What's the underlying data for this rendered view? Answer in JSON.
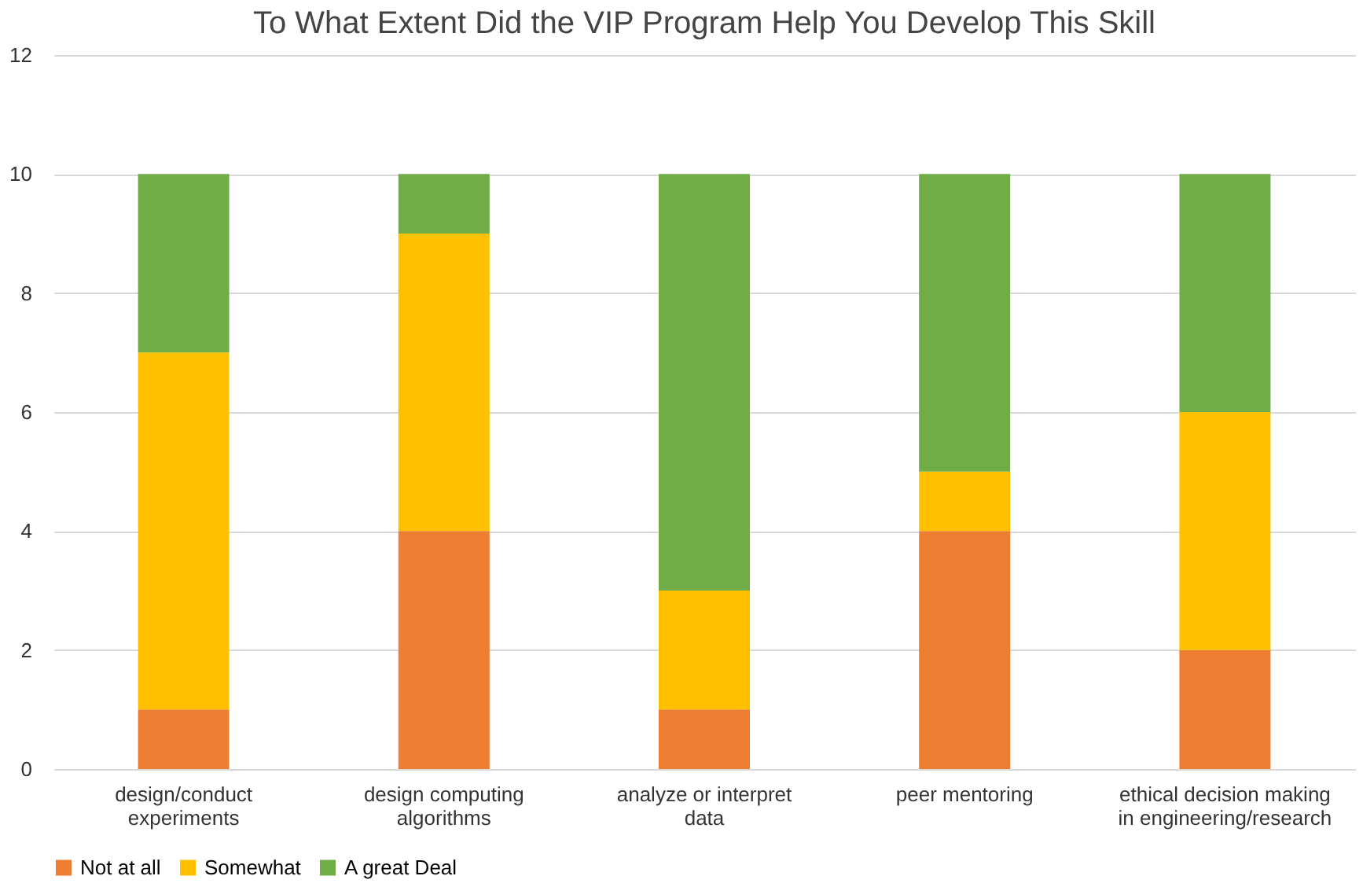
{
  "chart_data": {
    "type": "bar",
    "title": "To What Extent Did the VIP Program Help You Develop This Skill",
    "categories": [
      "design/conduct experiments",
      "design computing algorithms",
      "analyze or interpret data",
      "peer mentoring",
      "ethical decision making in engineering/research"
    ],
    "series": [
      {
        "name": "Not at all",
        "color": "#ed7d31",
        "values": [
          1,
          4,
          1,
          4,
          2
        ]
      },
      {
        "name": "Somewhat",
        "color": "#ffc000",
        "values": [
          6,
          5,
          2,
          1,
          4
        ]
      },
      {
        "name": "A great Deal",
        "color": "#70ad47",
        "values": [
          3,
          1,
          7,
          5,
          4
        ]
      }
    ],
    "stacked": true,
    "ylim": [
      0,
      12
    ],
    "yticks": [
      0,
      2,
      4,
      6,
      8,
      10,
      12
    ],
    "grid": "y",
    "legend": "bottom"
  }
}
